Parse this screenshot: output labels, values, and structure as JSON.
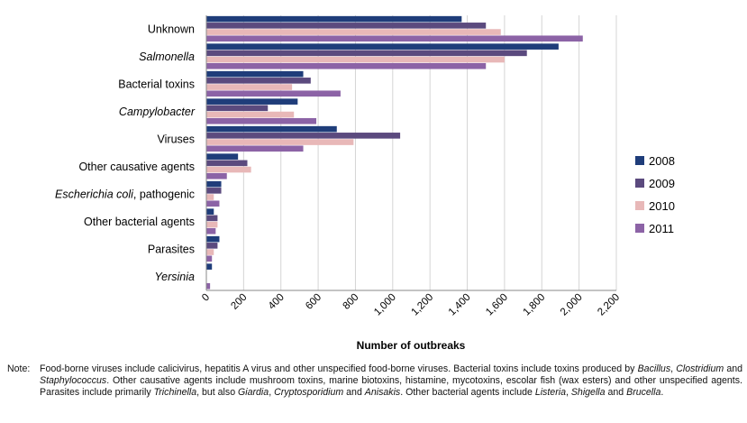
{
  "chart_data": {
    "type": "bar",
    "orientation": "horizontal",
    "categories": [
      "Unknown",
      "Salmonella",
      "Bacterial toxins",
      "Campylobacter",
      "Viruses",
      "Other causative agents",
      "Escherichia coli, pathogenic",
      "Other bacterial agents",
      "Parasites",
      "Yersinia"
    ],
    "category_label_parts": [
      [
        {
          "text": "Unknown",
          "italic": false
        }
      ],
      [
        {
          "text": "Salmonella",
          "italic": true
        }
      ],
      [
        {
          "text": "Bacterial toxins",
          "italic": false
        }
      ],
      [
        {
          "text": "Campylobacter",
          "italic": true
        }
      ],
      [
        {
          "text": "Viruses",
          "italic": false
        }
      ],
      [
        {
          "text": "Other causative agents",
          "italic": false
        }
      ],
      [
        {
          "text": "Escherichia coli",
          "italic": true
        },
        {
          "text": ", pathogenic",
          "italic": false
        }
      ],
      [
        {
          "text": "Other bacterial agents",
          "italic": false
        }
      ],
      [
        {
          "text": "Parasites",
          "italic": false
        }
      ],
      [
        {
          "text": "Yersinia",
          "italic": true
        }
      ]
    ],
    "series": [
      {
        "name": "2008",
        "color": "#1f3d7a",
        "values": [
          1370,
          1890,
          520,
          490,
          700,
          170,
          80,
          40,
          70,
          30
        ]
      },
      {
        "name": "2009",
        "color": "#5b4a7e",
        "values": [
          1500,
          1720,
          560,
          330,
          1040,
          220,
          80,
          60,
          60,
          0
        ]
      },
      {
        "name": "2010",
        "color": "#e8b8b8",
        "values": [
          1580,
          1600,
          460,
          470,
          790,
          240,
          40,
          60,
          40,
          0
        ]
      },
      {
        "name": "2011",
        "color": "#8c63a6",
        "values": [
          2020,
          1500,
          720,
          590,
          520,
          110,
          70,
          50,
          30,
          20
        ]
      }
    ],
    "xlabel": "Number of outbreaks",
    "ylabel": "",
    "xlim": [
      0,
      2200
    ],
    "x_ticks": [
      0,
      200,
      400,
      600,
      800,
      1000,
      1200,
      1400,
      1600,
      1800,
      2000,
      2200
    ],
    "x_tick_labels": [
      "0",
      "200",
      "400",
      "600",
      "800",
      "1,000",
      "1,200",
      "1,400",
      "1,600",
      "1,800",
      "2,000",
      "2,200"
    ],
    "grid": "vertical",
    "legend_position": "right"
  },
  "note": {
    "label": "Note:",
    "parts": [
      {
        "text": "Food-borne viruses include calicivirus, hepatitis A virus and other unspecified food-borne viruses. Bacterial toxins include toxins produced by ",
        "italic": false
      },
      {
        "text": "Bacillus",
        "italic": true
      },
      {
        "text": ", ",
        "italic": false
      },
      {
        "text": "Clostridium",
        "italic": true
      },
      {
        "text": " and ",
        "italic": false
      },
      {
        "text": "Staphylococcus",
        "italic": true
      },
      {
        "text": ". Other causative agents include mushroom toxins, marine biotoxins, histamine, mycotoxins, escolar fish (wax esters) and other unspecified agents. Parasites include primarily ",
        "italic": false
      },
      {
        "text": "Trichinella",
        "italic": true
      },
      {
        "text": ", but also ",
        "italic": false
      },
      {
        "text": "Giardia",
        "italic": true
      },
      {
        "text": ", ",
        "italic": false
      },
      {
        "text": "Cryptosporidium",
        "italic": true
      },
      {
        "text": " and ",
        "italic": false
      },
      {
        "text": "Anisakis",
        "italic": true
      },
      {
        "text": ". Other bacterial agents include ",
        "italic": false
      },
      {
        "text": "Listeria",
        "italic": true
      },
      {
        "text": ", ",
        "italic": false
      },
      {
        "text": "Shigella",
        "italic": true
      },
      {
        "text": " and ",
        "italic": false
      },
      {
        "text": "Brucella",
        "italic": true
      },
      {
        "text": ".",
        "italic": false
      }
    ]
  }
}
